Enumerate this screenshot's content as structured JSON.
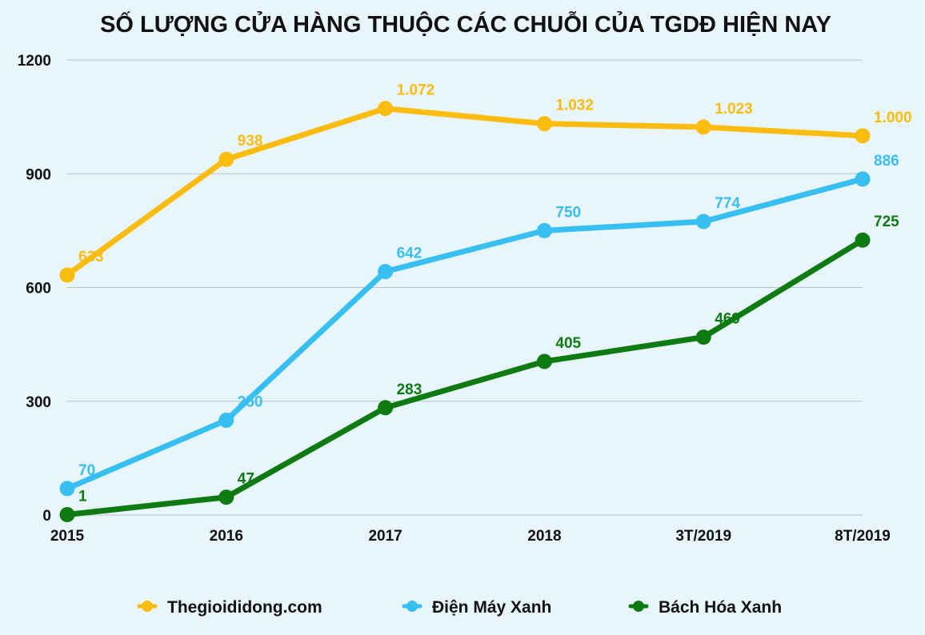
{
  "chart_data": {
    "type": "line",
    "title": "SỐ LƯỢNG CỬA HÀNG THUỘC CÁC CHUỖI CỦA TGDĐ HIỆN NAY",
    "xlabel": "",
    "ylabel": "",
    "categories": [
      "2015",
      "2016",
      "2017",
      "2018",
      "3T/2019",
      "8T/2019"
    ],
    "ylim": [
      0,
      1200
    ],
    "yticks": [
      0,
      300,
      600,
      900,
      1200
    ],
    "ytick_labels": [
      "0",
      "300",
      "600",
      "900",
      "1200"
    ],
    "grid": true,
    "legend_position": "bottom",
    "series": [
      {
        "name": "Thegioididong.com",
        "color": "#fbbc10",
        "values": [
          633,
          938,
          1072,
          1032,
          1023,
          1000
        ],
        "labels": [
          "633",
          "938",
          "1.072",
          "1.032",
          "1.023",
          "1.000"
        ]
      },
      {
        "name": "Điện Máy Xanh",
        "color": "#38bff2",
        "values": [
          70,
          250,
          642,
          750,
          774,
          886
        ],
        "labels": [
          "70",
          "250",
          "642",
          "750",
          "774",
          "886"
        ]
      },
      {
        "name": "Bách Hóa Xanh",
        "color": "#0e7b12",
        "values": [
          1,
          47,
          283,
          405,
          469,
          725
        ],
        "labels": [
          "1",
          "47",
          "283",
          "405",
          "469",
          "725"
        ]
      }
    ]
  }
}
